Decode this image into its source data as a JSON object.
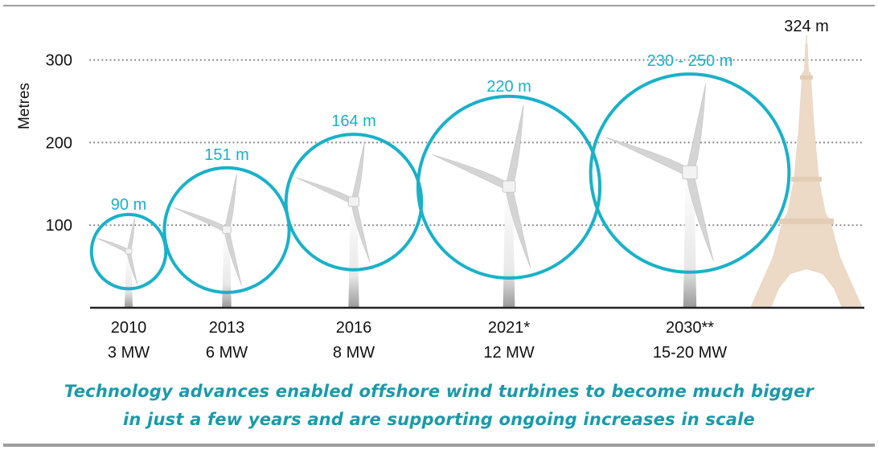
{
  "chart_data": {
    "type": "scatter",
    "ylabel": "Metres",
    "ylim": [
      0,
      300
    ],
    "yticks": [
      100,
      200,
      300
    ],
    "grid": "dotted horizontal",
    "turbines": [
      {
        "year": "2010",
        "capacity": "3 MW",
        "rotor_label": "90 m",
        "rotor_diameter": 90,
        "hub_height": 68
      },
      {
        "year": "2013",
        "capacity": "6 MW",
        "rotor_label": "151 m",
        "rotor_diameter": 151,
        "hub_height": 94
      },
      {
        "year": "2016",
        "capacity": "8 MW",
        "rotor_label": "164 m",
        "rotor_diameter": 164,
        "hub_height": 128
      },
      {
        "year": "2021*",
        "capacity": "12 MW",
        "rotor_label": "220 m",
        "rotor_diameter": 220,
        "hub_height": 146
      },
      {
        "year": "2030**",
        "capacity": "15-20 MW",
        "rotor_label": "230 - 250 m",
        "rotor_diameter": 240,
        "hub_height": 163
      }
    ],
    "landmark": {
      "name": "Eiffel Tower",
      "label": "324 m",
      "height": 324
    }
  },
  "caption": {
    "line1": "Technology advances enabled offshore wind turbines to become much bigger",
    "line2": "in just a few years and are supporting ongoing increases in scale"
  },
  "colors": {
    "accent": "#1ab1c8",
    "caption": "#1a9aa8",
    "tower": "#ecd9c6",
    "blade": "#d4d4d4",
    "grid": "#8a8a8a",
    "axis": "#222222"
  }
}
